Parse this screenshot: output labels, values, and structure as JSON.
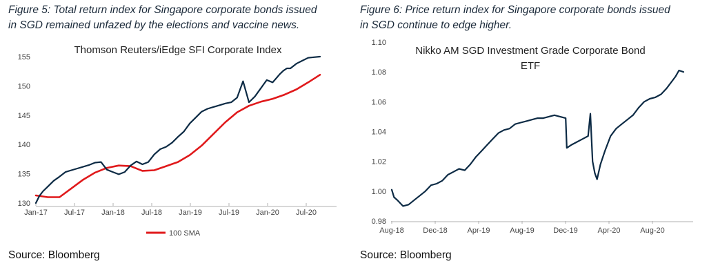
{
  "figures": [
    {
      "caption_line1": "Figure 5: Total return index for Singapore corporate bonds issued",
      "caption_line2": "in SGD remained unfazed by the elections and vaccine news.",
      "source": "Source: Bloomberg"
    },
    {
      "caption_line1": "Figure 6: Price return index for Singapore corporate bonds issued",
      "caption_line2": "in SGD continue to edge higher.",
      "source": "Source: Bloomberg"
    }
  ],
  "colors": {
    "index_line": "#0d2b45",
    "sma_line": "#e0191b",
    "axis": "#b0b0b0",
    "caption": "#1b2a3a"
  },
  "chart_data": [
    {
      "type": "line",
      "title": "Thomson Reuters/iEdge SFI Corporate Index",
      "xlabel": "",
      "ylabel": "",
      "ylim": [
        130,
        155
      ],
      "yticks": [
        130,
        135,
        140,
        145,
        150,
        155
      ],
      "xticks": [
        "Jan-17",
        "Jul-17",
        "Jan-18",
        "Jul-18",
        "Jan-19",
        "Jul-19",
        "Jan-20",
        "Jul-20"
      ],
      "xlim": [
        0,
        24
      ],
      "grid": false,
      "legend_position": "bottom",
      "series": [
        {
          "name": "",
          "color": "#0d2b45",
          "x": [
            0,
            0.3,
            0.6,
            1,
            1.5,
            2,
            2.5,
            3,
            3.5,
            4,
            4.5,
            5,
            5.5,
            6,
            6.5,
            7,
            7.5,
            8,
            8.5,
            9,
            9.5,
            10,
            10.5,
            11,
            11.5,
            12,
            12.5,
            13,
            13.5,
            14,
            14.5,
            15,
            15.5,
            16,
            16.5,
            17,
            17.5,
            18,
            18.5,
            19,
            19.5,
            20,
            20.3,
            20.6,
            20.9,
            21.2,
            21.5,
            22,
            22.5,
            23,
            23.5,
            24
          ],
          "values": [
            130,
            131.2,
            132,
            132.8,
            133.8,
            134.5,
            135.3,
            135.6,
            135.9,
            136.2,
            136.5,
            136.9,
            137.0,
            135.7,
            135.3,
            134.9,
            135.3,
            136.4,
            137.1,
            136.6,
            137.0,
            138.3,
            139.2,
            139.6,
            140.3,
            141.3,
            142.2,
            143.6,
            144.6,
            145.6,
            146.1,
            146.4,
            146.7,
            147.0,
            147.2,
            148.0,
            150.8,
            147.2,
            148.2,
            149.6,
            151.0,
            150.6,
            151.3,
            152.0,
            152.6,
            153.0,
            153.0,
            153.8,
            154.3,
            154.8,
            154.9,
            155.0
          ]
        },
        {
          "name": "100 SMA",
          "color": "#e0191b",
          "x": [
            0,
            1,
            2,
            3,
            4,
            5,
            6,
            7,
            8,
            9,
            10,
            11,
            12,
            13,
            14,
            15,
            16,
            17,
            18,
            19,
            20,
            21,
            22,
            23,
            24
          ],
          "values": [
            131.3,
            131.0,
            131.0,
            132.5,
            134.0,
            135.2,
            136.0,
            136.4,
            136.3,
            135.5,
            135.6,
            136.3,
            137.0,
            138.2,
            139.8,
            141.8,
            143.8,
            145.5,
            146.6,
            147.3,
            147.8,
            148.5,
            149.4,
            150.6,
            151.9
          ]
        }
      ]
    },
    {
      "type": "line",
      "title": "Nikko AM SGD Investment Grade Corporate Bond ETF",
      "title_line1": "Nikko AM SGD Investment Grade Corporate Bond",
      "title_line2": "ETF",
      "xlabel": "",
      "ylabel": "",
      "ylim": [
        0.98,
        1.1
      ],
      "yticks": [
        "0.98",
        "1.00",
        "1.02",
        "1.04",
        "1.06",
        "1.08",
        "1.10"
      ],
      "xticks": [
        "Aug-18",
        "Dec-18",
        "Apr-19",
        "Aug-19",
        "Dec-19",
        "Apr-20",
        "Aug-20"
      ],
      "xlim": [
        0,
        26
      ],
      "grid": false,
      "series": [
        {
          "name": "",
          "color": "#0d2b45",
          "x": [
            0,
            0.2,
            0.5,
            1,
            1.5,
            2,
            2.5,
            3,
            3.5,
            4,
            4.5,
            5,
            5.5,
            6,
            6.5,
            7,
            7.5,
            8,
            8.5,
            9,
            9.5,
            10,
            10.5,
            11,
            11.5,
            12,
            12.5,
            13,
            13.5,
            14,
            14.5,
            15,
            15.5,
            15.6,
            16,
            16.5,
            17,
            17.5,
            17.7,
            17.9,
            18.1,
            18.3,
            18.6,
            19,
            19.5,
            20,
            20.5,
            21,
            21.5,
            22,
            22.5,
            23,
            23.5,
            24,
            24.5,
            25,
            25.3,
            25.6,
            26
          ],
          "values": [
            1.001,
            0.996,
            0.994,
            0.99,
            0.991,
            0.994,
            0.997,
            1.0,
            1.004,
            1.005,
            1.007,
            1.011,
            1.013,
            1.015,
            1.014,
            1.018,
            1.023,
            1.027,
            1.031,
            1.035,
            1.039,
            1.041,
            1.042,
            1.045,
            1.046,
            1.047,
            1.048,
            1.049,
            1.049,
            1.05,
            1.051,
            1.05,
            1.049,
            1.029,
            1.031,
            1.033,
            1.035,
            1.037,
            1.052,
            1.02,
            1.012,
            1.008,
            1.018,
            1.027,
            1.037,
            1.042,
            1.045,
            1.048,
            1.051,
            1.056,
            1.06,
            1.062,
            1.063,
            1.065,
            1.069,
            1.074,
            1.077,
            1.081,
            1.08
          ]
        }
      ]
    }
  ]
}
